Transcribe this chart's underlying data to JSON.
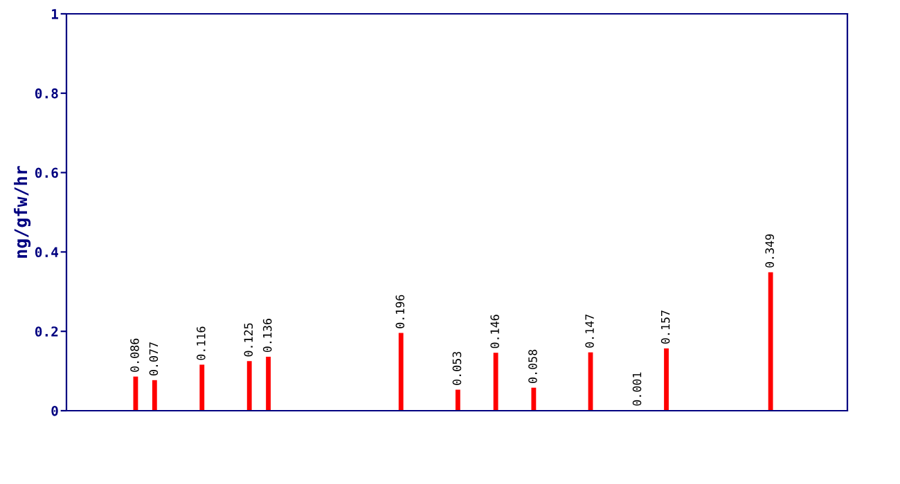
{
  "chart_data": {
    "type": "bar",
    "ylabel": "ng/gfw/hr",
    "categories": [
      null,
      null,
      null,
      null,
      null,
      null,
      null,
      null,
      null,
      null,
      null,
      null,
      null,
      null,
      null,
      null,
      null,
      null,
      null,
      null,
      null,
      null,
      null,
      null,
      null,
      null,
      null,
      null,
      null,
      null,
      null,
      null,
      null,
      null,
      null,
      null,
      null,
      null,
      null,
      null,
      null,
      null,
      null,
      null,
      null,
      null,
      null,
      null,
      null,
      null,
      null,
      null,
      null,
      null,
      null,
      null,
      null,
      null,
      null,
      null,
      null,
      null,
      null,
      null,
      null,
      null,
      null,
      null,
      null,
      null,
      null,
      null,
      null,
      null,
      null,
      null,
      null,
      null,
      null,
      null,
      null,
      null
    ],
    "values": [
      0,
      0,
      0,
      0,
      0,
      0,
      0,
      0.086,
      0,
      0.077,
      0,
      0,
      0,
      0,
      0.116,
      0,
      0,
      0,
      0,
      0.125,
      0,
      0.136,
      0,
      0,
      0,
      0,
      0,
      0,
      0,
      0,
      0,
      0,
      0,
      0,
      0,
      0.196,
      0,
      0,
      0,
      0,
      0,
      0.053,
      0,
      0,
      0,
      0.146,
      0,
      0,
      0,
      0.058,
      0,
      0,
      0,
      0,
      0,
      0.147,
      0,
      0,
      0,
      0,
      0.001,
      0,
      0,
      0.157,
      0,
      0,
      0,
      0,
      0,
      0,
      0,
      0,
      0,
      0,
      0.349,
      0,
      0,
      0,
      0,
      0,
      0,
      0
    ],
    "value_labels": [
      null,
      null,
      null,
      null,
      null,
      null,
      null,
      "0.086",
      null,
      "0.077",
      null,
      null,
      null,
      null,
      "0.116",
      null,
      null,
      null,
      null,
      "0.125",
      null,
      "0.136",
      null,
      null,
      null,
      null,
      null,
      null,
      null,
      null,
      null,
      null,
      null,
      null,
      null,
      "0.196",
      null,
      null,
      null,
      null,
      null,
      "0.053",
      null,
      null,
      null,
      "0.146",
      null,
      null,
      null,
      "0.058",
      null,
      null,
      null,
      null,
      null,
      "0.147",
      null,
      null,
      null,
      null,
      "0.001",
      null,
      null,
      "0.157",
      null,
      null,
      null,
      null,
      null,
      null,
      null,
      null,
      null,
      null,
      "0.349",
      null,
      null,
      null,
      null,
      null,
      null,
      null
    ],
    "color": "#ff0000",
    "ylim": [
      0,
      1
    ],
    "yticks": [
      0,
      {
        "value": 0.2,
        "label": "0.2"
      },
      {
        "value": 0.4,
        "label": "0.4"
      },
      {
        "value": 0.6,
        "label": "0.6"
      },
      {
        "value": 0.8,
        "label": "0.8"
      },
      1
    ],
    "grid": false,
    "legend": false
  }
}
